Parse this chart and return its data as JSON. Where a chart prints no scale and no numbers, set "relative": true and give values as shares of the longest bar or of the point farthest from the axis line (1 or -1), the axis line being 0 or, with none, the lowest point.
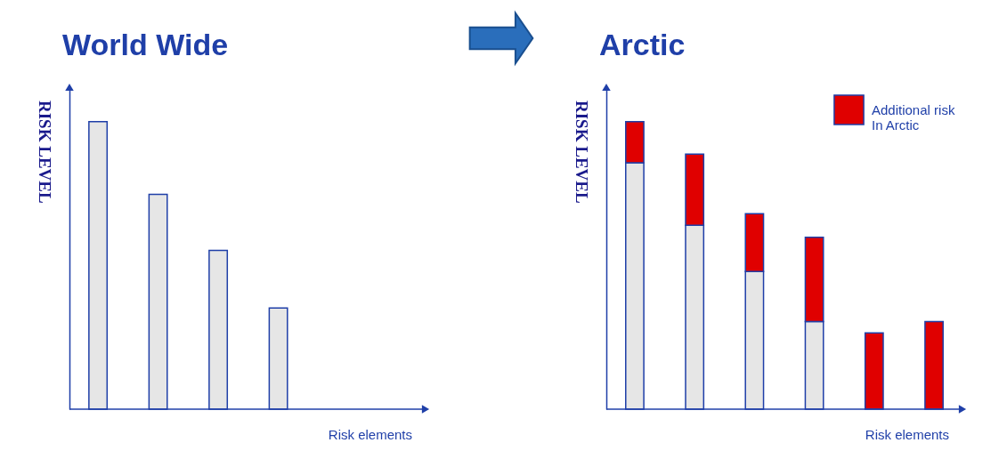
{
  "chart_data": [
    {
      "type": "bar",
      "title": "World Wide",
      "ylabel": "RISK LEVEL",
      "xlabel": "Risk elements",
      "relative": true,
      "grid": false,
      "legend": false,
      "categories": [
        null,
        null,
        null,
        null
      ],
      "series": [
        {
          "color": "#e6e6e6",
          "values": [
            1,
            0.747,
            0.552,
            0.352
          ]
        }
      ]
    },
    {
      "type": "bar",
      "title": "Arctic",
      "ylabel": "RISK LEVEL",
      "xlabel": "Risk elements",
      "relative": true,
      "grid": false,
      "stacked": true,
      "legend": "top right",
      "categories": [
        null,
        null,
        null,
        null,
        null,
        null
      ],
      "series": [
        {
          "color": "#e6e6e6",
          "values": [
            0.857,
            0.64,
            0.479,
            0.305,
            null,
            null
          ]
        },
        {
          "name": "Additional risk\nIn Arctic",
          "color": "#e00000",
          "values": [
            0.143,
            0.247,
            0.201,
            0.293,
            0.265,
            0.305
          ]
        }
      ]
    }
  ]
}
